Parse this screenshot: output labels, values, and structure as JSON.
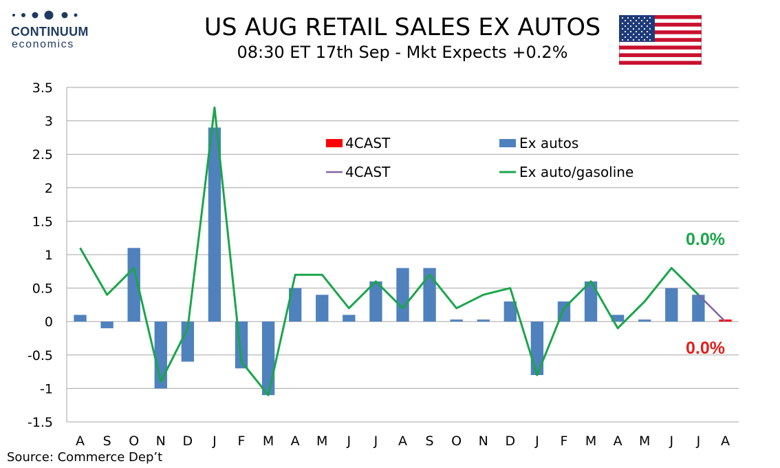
{
  "header": {
    "brand_name": "CONTINUUM",
    "brand_sub": "economics",
    "title": "US AUG RETAIL SALES EX AUTOS",
    "subtitle": "08:30 ET 17th Sep - Mkt Expects +0.2%",
    "flag_icon": "us-flag-icon"
  },
  "footer": {
    "source": "Source: Commerce Dep’t"
  },
  "colors": {
    "bars": "#4f81bd",
    "line": "#1aa54a",
    "forecast_bar": "#ff0000",
    "forecast_line": "#8064a2",
    "grid": "#a6a6a6",
    "anno_green": "#1aa54a",
    "anno_red": "#e0201b",
    "logo": "#1f3a5f"
  },
  "chart_data": {
    "type": "bar",
    "categories": [
      "A",
      "S",
      "O",
      "N",
      "D",
      "J",
      "F",
      "M",
      "A",
      "M",
      "J",
      "J",
      "A",
      "S",
      "O",
      "N",
      "D",
      "J",
      "F",
      "M",
      "A",
      "M",
      "J",
      "J",
      "A"
    ],
    "ylim": [
      -1.5,
      3.5
    ],
    "yticks": [
      "3.5",
      "3",
      "2.5",
      "2",
      "1.5",
      "1",
      "0.5",
      "0",
      "-0.5",
      "-1",
      "-1.5"
    ],
    "grid": true,
    "legend_position": "top-center",
    "series": [
      {
        "name": "Ex autos",
        "kind": "bar",
        "values": [
          0.1,
          -0.1,
          1.1,
          -1.0,
          -0.6,
          2.9,
          -0.7,
          -1.1,
          0.5,
          0.4,
          0.1,
          0.6,
          0.8,
          0.8,
          0.03,
          0.03,
          0.3,
          -0.8,
          0.3,
          0.6,
          0.1,
          0.03,
          0.5,
          0.4,
          null
        ]
      },
      {
        "name": "4CAST",
        "kind": "bar",
        "values": [
          null,
          null,
          null,
          null,
          null,
          null,
          null,
          null,
          null,
          null,
          null,
          null,
          null,
          null,
          null,
          null,
          null,
          null,
          null,
          null,
          null,
          null,
          null,
          null,
          0.03
        ]
      },
      {
        "name": "Ex auto/gasoline",
        "kind": "line",
        "values": [
          1.1,
          0.4,
          0.8,
          -0.9,
          -0.1,
          3.2,
          -0.6,
          -1.1,
          0.7,
          0.7,
          0.2,
          0.6,
          0.2,
          0.7,
          0.2,
          0.4,
          0.5,
          -0.8,
          0.2,
          0.6,
          -0.1,
          0.3,
          0.8,
          0.4,
          null
        ]
      },
      {
        "name": "4CAST",
        "kind": "line",
        "values": [
          null,
          null,
          null,
          null,
          null,
          null,
          null,
          null,
          null,
          null,
          null,
          null,
          null,
          null,
          null,
          null,
          null,
          null,
          null,
          null,
          null,
          null,
          null,
          0.4,
          0.0
        ]
      }
    ],
    "legend": [
      {
        "label": "4CAST",
        "kind": "bar-forecast"
      },
      {
        "label": "Ex autos",
        "kind": "bar"
      },
      {
        "label": "4CAST",
        "kind": "line-forecast"
      },
      {
        "label": "Ex auto/gasoline",
        "kind": "line"
      }
    ],
    "annotations": [
      {
        "text": "0.0%",
        "color_key": "anno_green"
      },
      {
        "text": "0.0%",
        "color_key": "anno_red"
      }
    ]
  }
}
